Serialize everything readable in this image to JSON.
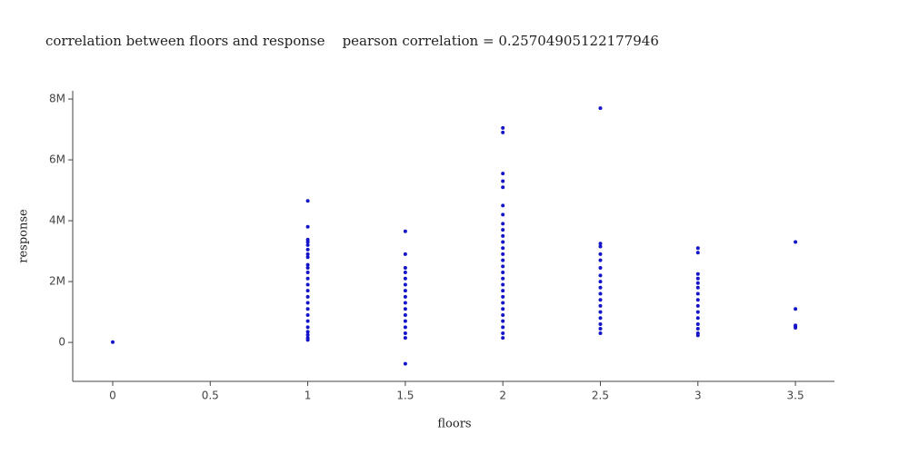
{
  "chart_data": {
    "type": "scatter",
    "title": "correlation between floors and response    pearson correlation = 0.25704905122177946",
    "x_label": "floors",
    "y_label": "response",
    "color": "#1414c8",
    "xlim": [
      -0.205,
      3.7
    ],
    "xticks": [
      0,
      0.5,
      1,
      1.5,
      2,
      2.5,
      3,
      3.5
    ],
    "ylim": [
      -1280000,
      8270000
    ],
    "yticks": [
      {
        "value": 0,
        "label": "0"
      },
      {
        "value": 2000000,
        "label": "2M"
      },
      {
        "value": 4000000,
        "label": "4M"
      },
      {
        "value": 6000000,
        "label": "6M"
      },
      {
        "value": 8000000,
        "label": "8M"
      }
    ],
    "x": [
      0,
      1,
      1,
      1,
      1,
      1,
      1,
      1,
      1,
      1,
      1,
      1,
      1,
      1,
      1,
      1,
      1,
      1,
      1,
      1,
      1,
      1,
      1,
      1,
      1,
      1.5,
      1.5,
      1.5,
      1.5,
      1.5,
      1.5,
      1.5,
      1.5,
      1.5,
      1.5,
      1.5,
      1.5,
      1.5,
      1.5,
      1.5,
      1.5,
      2,
      2,
      2,
      2,
      2,
      2,
      2,
      2,
      2,
      2,
      2,
      2,
      2,
      2,
      2,
      2,
      2,
      2,
      2,
      2,
      2,
      2,
      2,
      2,
      2,
      2,
      2,
      2.5,
      2.5,
      2.5,
      2.5,
      2.5,
      2.5,
      2.5,
      2.5,
      2.5,
      2.5,
      2.5,
      2.5,
      2.5,
      2.5,
      2.5,
      2.5,
      2.5,
      3,
      3,
      3,
      3,
      3,
      3,
      3,
      3,
      3,
      3,
      3,
      3,
      3,
      3,
      3,
      3.5,
      3.5,
      3.5,
      3.5,
      3.5
    ],
    "values": [
      10000,
      4650000,
      3800000,
      3380000,
      3300000,
      3200000,
      3050000,
      2900000,
      2800000,
      2550000,
      2450000,
      2300000,
      2100000,
      1900000,
      1700000,
      1500000,
      1300000,
      1100000,
      900000,
      700000,
      500000,
      350000,
      250000,
      150000,
      80000,
      3650000,
      2900000,
      2450000,
      2300000,
      2100000,
      1900000,
      1700000,
      1500000,
      1300000,
      1100000,
      900000,
      700000,
      500000,
      300000,
      150000,
      -700000,
      7050000,
      6900000,
      5550000,
      5300000,
      5100000,
      4500000,
      4200000,
      3900000,
      3700000,
      3500000,
      3300000,
      3100000,
      2900000,
      2700000,
      2500000,
      2300000,
      2100000,
      1900000,
      1700000,
      1500000,
      1300000,
      1100000,
      900000,
      700000,
      500000,
      300000,
      150000,
      7700000,
      3250000,
      3150000,
      2900000,
      2700000,
      2450000,
      2200000,
      2000000,
      1800000,
      1600000,
      1400000,
      1200000,
      1000000,
      800000,
      600000,
      450000,
      300000,
      3100000,
      2950000,
      2250000,
      2100000,
      1950000,
      1800000,
      1600000,
      1400000,
      1200000,
      1000000,
      800000,
      600000,
      450000,
      300000,
      230000,
      3300000,
      1100000,
      560000,
      520000,
      480000
    ]
  }
}
